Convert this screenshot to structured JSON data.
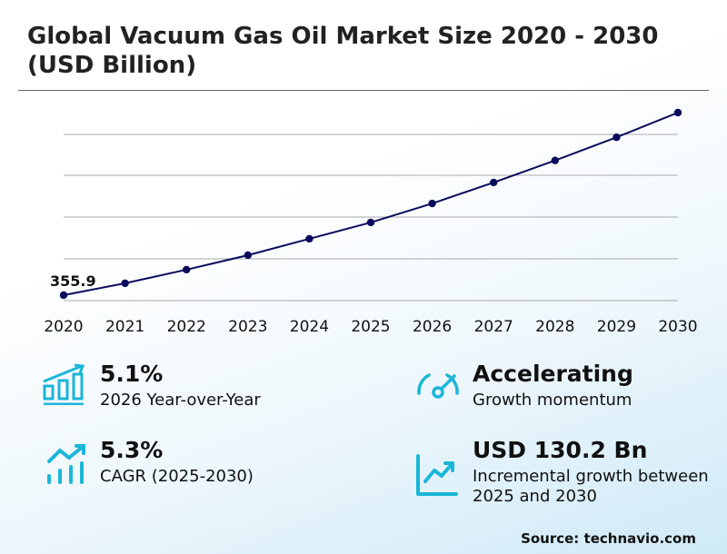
{
  "title": "Global Vacuum Gas Oil Market Size 2020 - 2030 (USD Billion)",
  "chart_data": {
    "type": "line",
    "title": "Global Vacuum Gas Oil Market Size 2020 - 2030 (USD Billion)",
    "xlabel": "",
    "ylabel": "USD Billion",
    "x": [
      "2020",
      "2021",
      "2022",
      "2023",
      "2024",
      "2025",
      "2026",
      "2027",
      "2028",
      "2029",
      "2030"
    ],
    "values": [
      355.9,
      370.0,
      386.1,
      403.3,
      422.7,
      442.1,
      464.6,
      489.5,
      515.6,
      543.0,
      572.3
    ],
    "data_labels": {
      "2020": "355.9"
    },
    "grid": true,
    "line_color": "#0a0a5c"
  },
  "stats": [
    {
      "value": "5.1%",
      "label": "2026 Year-over-Year",
      "icon": "bar-chart-growth-icon"
    },
    {
      "value": "Accelerating",
      "label": "Growth momentum",
      "icon": "speedometer-icon"
    },
    {
      "value": "5.3%",
      "label": "CAGR (2025-2030)",
      "icon": "trend-bars-icon"
    },
    {
      "value": "USD 130.2 Bn",
      "label": "Incremental growth between 2025 and 2030",
      "icon": "line-chart-icon"
    }
  ],
  "accent_color": "#1ab6d8",
  "source": "Source: technavio.com"
}
